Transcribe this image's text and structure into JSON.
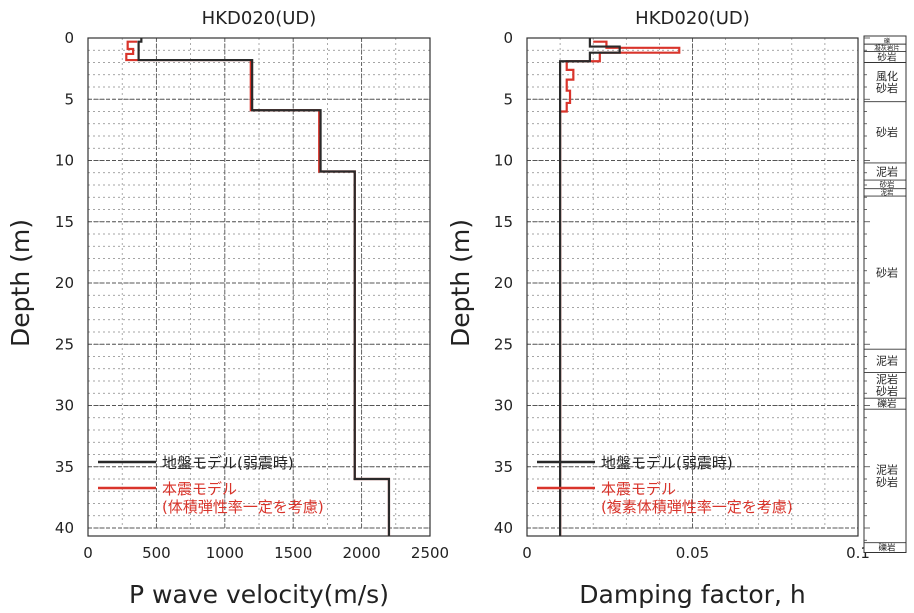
{
  "chart_data": [
    {
      "type": "line",
      "title": "HKD020(UD)",
      "xlabel": "P wave velocity(m/s)",
      "ylabel": "Depth (m)",
      "xlim": [
        0,
        2500
      ],
      "ylim": [
        0,
        40
      ],
      "y_inverted": true,
      "grid": true,
      "legend_position": "bottom-left",
      "xticks": [
        "0",
        "500",
        "1000",
        "1500",
        "2000",
        "2500"
      ],
      "yticks": [
        "0",
        "5",
        "10",
        "15",
        "20",
        "25",
        "30",
        "35",
        "40"
      ],
      "series": [
        {
          "name": "地盤モデル(弱震時)",
          "color": "#2a2a2a",
          "points": [
            [
              390,
              0
            ],
            [
              390,
              0.3
            ],
            [
              370,
              0.3
            ],
            [
              370,
              1.8
            ],
            [
              1200,
              1.8
            ],
            [
              1200,
              5.9
            ],
            [
              1700,
              5.9
            ],
            [
              1700,
              10.9
            ],
            [
              1950,
              10.9
            ],
            [
              1950,
              36.0
            ],
            [
              2200,
              36.0
            ],
            [
              2200,
              41.5
            ]
          ]
        },
        {
          "name": "本震モデル\n(体積弾性率一定を考慮)",
          "color": "#d9342b",
          "points": [
            [
              360,
              0.3
            ],
            [
              290,
              0.3
            ],
            [
              290,
              0.9
            ],
            [
              330,
              0.9
            ],
            [
              330,
              1.3
            ],
            [
              280,
              1.3
            ],
            [
              280,
              1.8
            ],
            [
              1190,
              1.8
            ],
            [
              1190,
              5.9
            ],
            [
              1690,
              5.9
            ],
            [
              1690,
              10.9
            ],
            [
              1950,
              10.9
            ],
            [
              1950,
              36.0
            ],
            [
              2200,
              36.0
            ],
            [
              2200,
              41.5
            ]
          ]
        }
      ]
    },
    {
      "type": "line",
      "title": "HKD020(UD)",
      "xlabel": "Damping factor, h",
      "ylabel": "Depth (m)",
      "xlim": [
        0,
        0.1
      ],
      "ylim": [
        0,
        40
      ],
      "y_inverted": true,
      "grid": true,
      "legend_position": "bottom-left",
      "xticks": [
        "0",
        "0.05",
        "0.1"
      ],
      "yticks": [
        "0",
        "5",
        "10",
        "15",
        "20",
        "25",
        "30",
        "35",
        "40"
      ],
      "series": [
        {
          "name": "地盤モデル(弱震時)",
          "color": "#2a2a2a",
          "points": [
            [
              0.019,
              0
            ],
            [
              0.019,
              0.7
            ],
            [
              0.028,
              0.7
            ],
            [
              0.028,
              1.2
            ],
            [
              0.019,
              1.2
            ],
            [
              0.019,
              1.9
            ],
            [
              0.01,
              1.9
            ],
            [
              0.01,
              41.5
            ]
          ]
        },
        {
          "name": "本震モデル\n(複素体積弾性率一定を考慮)",
          "color": "#d9342b",
          "points": [
            [
              0.02,
              0.3
            ],
            [
              0.024,
              0.3
            ],
            [
              0.024,
              0.8
            ],
            [
              0.046,
              0.8
            ],
            [
              0.046,
              1.2
            ],
            [
              0.022,
              1.2
            ],
            [
              0.022,
              1.9
            ],
            [
              0.012,
              1.9
            ],
            [
              0.012,
              2.6
            ],
            [
              0.014,
              2.6
            ],
            [
              0.014,
              3.4
            ],
            [
              0.012,
              3.4
            ],
            [
              0.012,
              4.3
            ],
            [
              0.013,
              4.3
            ],
            [
              0.013,
              5.3
            ],
            [
              0.012,
              5.3
            ],
            [
              0.012,
              6.0
            ],
            [
              0.01,
              6.0
            ],
            [
              0.01,
              41.5
            ]
          ]
        }
      ]
    }
  ],
  "geology": {
    "layers": [
      {
        "label": "礫",
        "top": 0.0,
        "bottom": 0.5
      },
      {
        "label": "凝灰岩片",
        "top": 0.5,
        "bottom": 1.1
      },
      {
        "label": "砂岩",
        "top": 1.1,
        "bottom": 2.0
      },
      {
        "label": "風化\n砂岩",
        "top": 2.0,
        "bottom": 5.2
      },
      {
        "label": "砂岩",
        "top": 5.2,
        "bottom": 10.2
      },
      {
        "label": "泥岩",
        "top": 10.2,
        "bottom": 11.6
      },
      {
        "label": "砂岩",
        "top": 11.6,
        "bottom": 12.3
      },
      {
        "label": "泥岩",
        "top": 12.3,
        "bottom": 12.9
      },
      {
        "label": "砂岩",
        "top": 12.9,
        "bottom": 25.4
      },
      {
        "label": "泥岩",
        "top": 25.4,
        "bottom": 27.3
      },
      {
        "label": "泥岩\n砂岩",
        "top": 27.3,
        "bottom": 29.4
      },
      {
        "label": "礫岩",
        "top": 29.4,
        "bottom": 30.3
      },
      {
        "label": "泥岩\n砂岩",
        "top": 30.3,
        "bottom": 41.2
      },
      {
        "label": "礫岩",
        "top": 41.2,
        "bottom": 42.0
      }
    ]
  }
}
